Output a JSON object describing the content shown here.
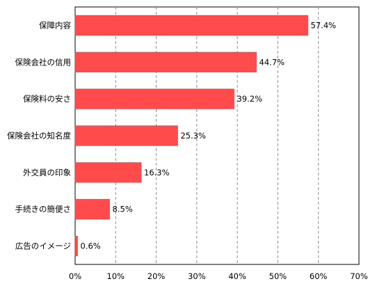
{
  "chart_data": {
    "type": "bar",
    "orientation": "horizontal",
    "title": "",
    "xlabel": "",
    "ylabel": "",
    "categories": [
      "保障内容",
      "保険会社の信用",
      "保険料の安さ",
      "保険会社の知名度",
      "外交員の印象",
      "手続きの簡便さ",
      "広告のイメージ"
    ],
    "values": [
      57.4,
      44.7,
      39.2,
      25.3,
      16.3,
      8.5,
      0.6
    ],
    "value_labels": [
      "57.4%",
      "44.7%",
      "39.2%",
      "25.3%",
      "16.3%",
      "8.5%",
      "0.6%"
    ],
    "xlim": [
      0,
      70
    ],
    "ticks": [
      0,
      10,
      20,
      30,
      40,
      50,
      60,
      70
    ],
    "tick_labels": [
      "0%",
      "10%",
      "20%",
      "30%",
      "40%",
      "50%",
      "60%",
      "70%"
    ],
    "grid": "vertical dashed",
    "bar_color": "#ff4b4b",
    "bar_border_color": "#d83a3a"
  }
}
